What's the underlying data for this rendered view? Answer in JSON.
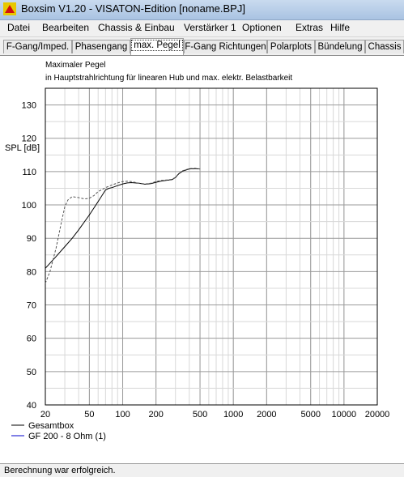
{
  "window": {
    "title": "Boxsim V1.20 - VISATON-Edition [noname.BPJ]"
  },
  "menu": [
    "Datei",
    "Bearbeiten",
    "Chassis & Einbau",
    "Verstärker 1",
    "Optionen",
    "Extras",
    "Hilfe"
  ],
  "tabs": [
    "F-Gang/Imped.",
    "Phasengang",
    "max. Pegel",
    "F-Gang Richtungen",
    "Polarplots",
    "Bündelung",
    "Chassis"
  ],
  "active_tab": "max. Pegel",
  "status": "Berechnung war erfolgreich.",
  "colors": {
    "series_1": "#000000",
    "series_2": "#0000cc",
    "dashed": "#555555"
  },
  "chart_data": {
    "type": "line",
    "title": "Maximaler Pegel",
    "subtitle": "in Hauptstrahlrichtung für linearen Hub und max. elektr. Belastbarkeit",
    "ylabel": "SPL [dB]",
    "xlabel": "",
    "x_scale": "log",
    "xlim": [
      20,
      20000
    ],
    "ylim": [
      40,
      135
    ],
    "grid": true,
    "legend_position": "bottom-left",
    "x_ticks": [
      "20",
      "50",
      "100",
      "200",
      "500",
      "1000",
      "2000",
      "5000",
      "10000",
      "20000"
    ],
    "y_ticks": [
      "40",
      "50",
      "60",
      "70",
      "80",
      "90",
      "100",
      "110",
      "120",
      "130"
    ],
    "series": [
      {
        "name": "Gesamtbox",
        "style": "solid",
        "x": [
          20,
          25,
          30,
          35,
          40,
          50,
          60,
          70,
          75,
          80,
          90,
          100,
          110,
          120,
          140,
          160,
          180,
          200,
          220,
          250,
          280,
          300,
          320,
          350,
          400,
          450,
          500
        ],
        "y": [
          81,
          84.5,
          87.5,
          90,
          92.5,
          97,
          101,
          104.5,
          105,
          105.2,
          105.8,
          106.3,
          106.6,
          106.7,
          106.5,
          106.2,
          106.4,
          106.8,
          107.1,
          107.4,
          107.6,
          108.2,
          109.3,
          110.2,
          110.8,
          110.9,
          110.8
        ]
      },
      {
        "name": "GF 200 - 8 Ohm (1)",
        "style": "dashed",
        "x": [
          20,
          22,
          25,
          28,
          30,
          32,
          35,
          40,
          45,
          50,
          55,
          60,
          70,
          80,
          90,
          100,
          110,
          120,
          140,
          160,
          180,
          200,
          220,
          250,
          280,
          300,
          320,
          350,
          400,
          450,
          500
        ],
        "y": [
          76.5,
          80,
          87,
          95,
          99.5,
          101.5,
          102.5,
          102.2,
          101.8,
          102,
          102.8,
          104,
          105.2,
          106,
          106.6,
          107,
          107.1,
          107,
          106.5,
          106.3,
          106.5,
          107,
          107.3,
          107.5,
          107.7,
          108.3,
          109.4,
          110.3,
          110.9,
          111,
          110.8
        ]
      }
    ]
  }
}
